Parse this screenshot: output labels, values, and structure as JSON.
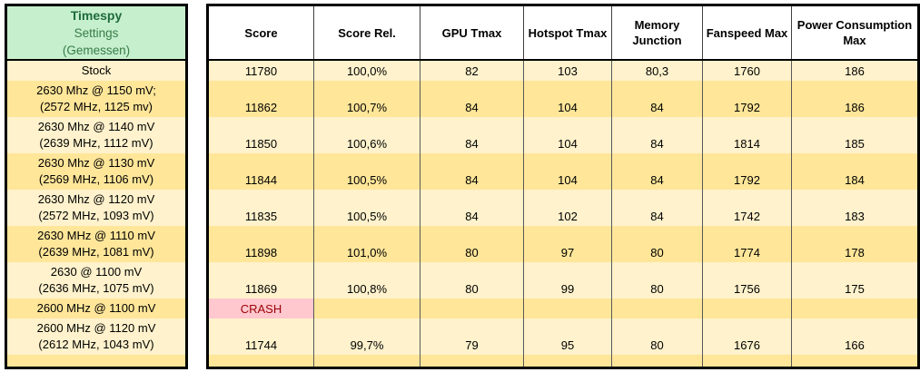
{
  "left_header": {
    "line1": "Timespy",
    "line2": "Settings",
    "line3": "(Gemessen)"
  },
  "columns": [
    "Score",
    "Score Rel.",
    "GPU Tmax",
    "Hotspot Tmax",
    "Memory Junction",
    "Fanspeed Max",
    "Power Consumption Max"
  ],
  "colors": {
    "green-bg": "#C6EFCE",
    "green-title": "#1E6B3C",
    "green-text": "#377E47",
    "light": "#FFF2CC",
    "dark": "#FFE699",
    "crash-bg": "#FFC7CE",
    "crash-text": "#9C0006",
    "grid": "#595959",
    "frame": "#000000"
  },
  "rows": [
    {
      "setting": [
        "Stock"
      ],
      "shade": "light",
      "values": [
        "11780",
        "100,0%",
        "82",
        "103",
        "80,3",
        "1760",
        "186"
      ]
    },
    {
      "setting": [
        "2630 Mhz @ 1150 mV;",
        "(2572 MHz, 1125 mv)"
      ],
      "shade": "dark",
      "values": [
        "11862",
        "100,7%",
        "84",
        "104",
        "84",
        "1792",
        "186"
      ]
    },
    {
      "setting": [
        "2630 Mhz @ 1140 mV",
        "(2639 MHz, 1112 mV)"
      ],
      "shade": "light",
      "values": [
        "11850",
        "100,6%",
        "84",
        "104",
        "84",
        "1814",
        "185"
      ]
    },
    {
      "setting": [
        "2630 Mhz @ 1130 mV",
        "(2569 MHz, 1106 mV)"
      ],
      "shade": "dark",
      "values": [
        "11844",
        "100,5%",
        "84",
        "104",
        "84",
        "1792",
        "184"
      ]
    },
    {
      "setting": [
        "2630 Mhz @ 1120 mV",
        "(2572 MHz, 1093 mV)"
      ],
      "shade": "light",
      "values": [
        "11835",
        "100,5%",
        "84",
        "102",
        "84",
        "1742",
        "183"
      ]
    },
    {
      "setting": [
        "2630 MHz @ 1110 mV",
        "(2639 MHz, 1081 mV)"
      ],
      "shade": "dark",
      "values": [
        "11898",
        "101,0%",
        "80",
        "97",
        "80",
        "1774",
        "178"
      ]
    },
    {
      "setting": [
        "2630 @ 1100 mV",
        "(2636 MHz, 1075 mV)"
      ],
      "shade": "light",
      "values": [
        "11869",
        "100,8%",
        "80",
        "99",
        "80",
        "1756",
        "175"
      ]
    },
    {
      "setting": [
        "2600 MHz @ 1100 mV"
      ],
      "shade": "dark",
      "crash": true,
      "values": [
        "CRASH",
        "",
        "",
        "",
        "",
        "",
        ""
      ]
    },
    {
      "setting": [
        "2600 MHz @ 1120 mV",
        "(2612 MHz, 1043 mV)"
      ],
      "shade": "light",
      "values": [
        "11744",
        "99,7%",
        "79",
        "95",
        "80",
        "1676",
        "166"
      ]
    },
    {
      "setting": [],
      "shade": "dark",
      "empty": true,
      "values": [
        "",
        "",
        "",
        "",
        "",
        "",
        ""
      ]
    }
  ],
  "chart_data": {
    "type": "table",
    "title": "Timespy Settings (Gemessen)",
    "columns": [
      "Settings",
      "Score",
      "Score Rel.",
      "GPU Tmax",
      "Hotspot Tmax",
      "Memory Junction",
      "Fanspeed Max",
      "Power Consumption Max"
    ],
    "rows": [
      [
        "Stock",
        "11780",
        "100,0%",
        "82",
        "103",
        "80,3",
        "1760",
        "186"
      ],
      [
        "2630 Mhz @ 1150 mV; (2572 MHz, 1125 mv)",
        "11862",
        "100,7%",
        "84",
        "104",
        "84",
        "1792",
        "186"
      ],
      [
        "2630 Mhz @ 1140 mV (2639 MHz, 1112 mV)",
        "11850",
        "100,6%",
        "84",
        "104",
        "84",
        "1814",
        "185"
      ],
      [
        "2630 Mhz @ 1130 mV (2569 MHz, 1106 mV)",
        "11844",
        "100,5%",
        "84",
        "104",
        "84",
        "1792",
        "184"
      ],
      [
        "2630 Mhz @ 1120 mV (2572 MHz, 1093 mV)",
        "11835",
        "100,5%",
        "84",
        "102",
        "84",
        "1742",
        "183"
      ],
      [
        "2630 MHz @ 1110 mV (2639 MHz, 1081 mV)",
        "11898",
        "101,0%",
        "80",
        "97",
        "80",
        "1774",
        "178"
      ],
      [
        "2630 @ 1100 mV (2636 MHz, 1075 mV)",
        "11869",
        "100,8%",
        "80",
        "99",
        "80",
        "1756",
        "175"
      ],
      [
        "2600 MHz @ 1100 mV",
        "CRASH",
        "",
        "",
        "",
        "",
        "",
        ""
      ],
      [
        "2600 MHz @ 1120 mV (2612 MHz, 1043 mV)",
        "11744",
        "99,7%",
        "79",
        "95",
        "80",
        "1676",
        "166"
      ]
    ]
  }
}
